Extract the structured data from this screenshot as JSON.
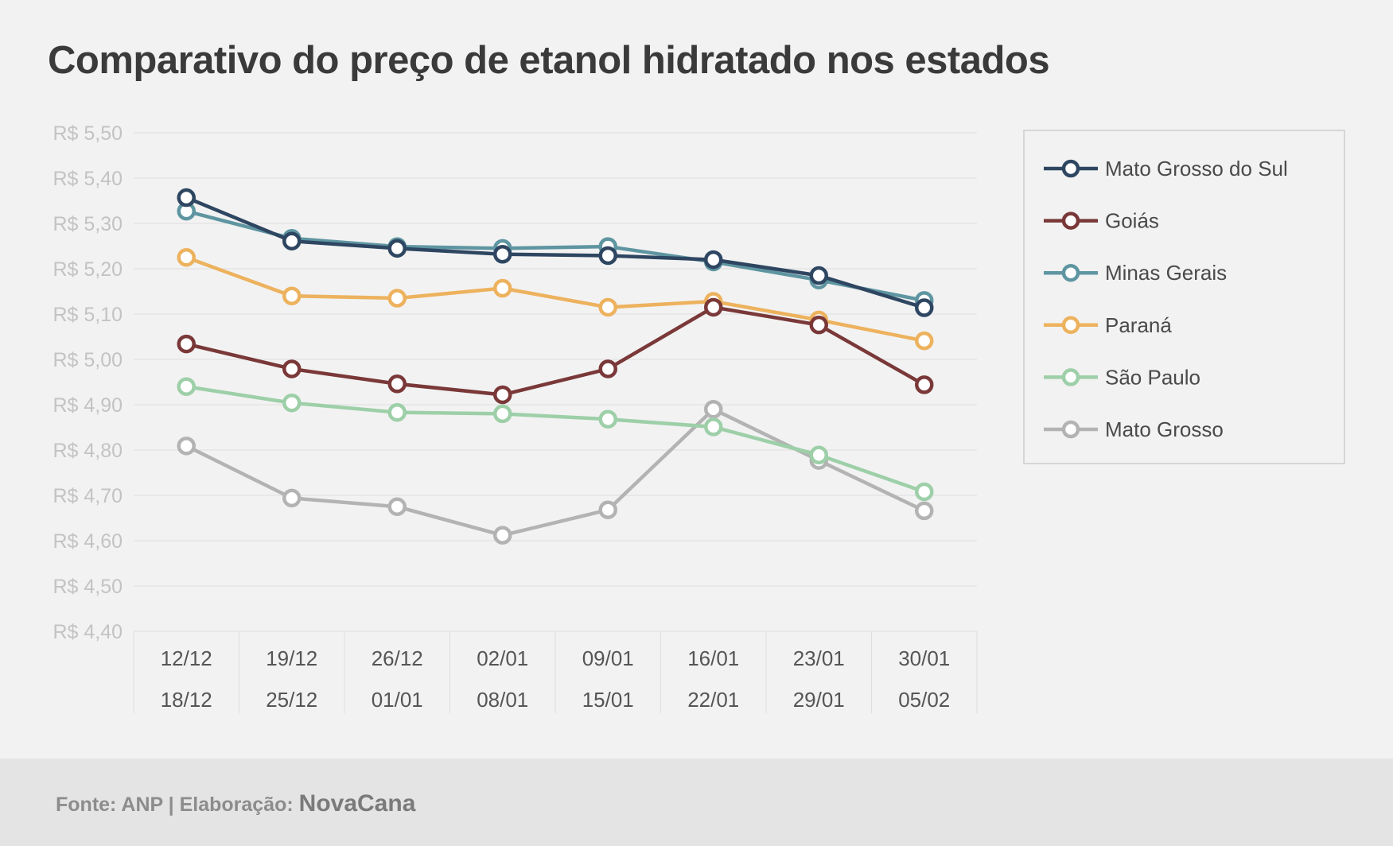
{
  "chart_data": {
    "type": "line",
    "title": "Comparativo do preço de etanol hidratado nos estados",
    "categories": [
      [
        "12/12",
        "18/12"
      ],
      [
        "19/12",
        "25/12"
      ],
      [
        "26/12",
        "01/01"
      ],
      [
        "02/01",
        "08/01"
      ],
      [
        "09/01",
        "15/01"
      ],
      [
        "16/01",
        "22/01"
      ],
      [
        "23/01",
        "29/01"
      ],
      [
        "30/01",
        "05/02"
      ]
    ],
    "yticks": [
      "R$ 5,50",
      "R$ 5,40",
      "R$ 5,30",
      "R$ 5,20",
      "R$ 5,10",
      "R$ 5,00",
      "R$ 4,90",
      "R$ 4,80",
      "R$ 4,70",
      "R$ 4,60",
      "R$ 4,50",
      "R$ 4,40"
    ],
    "ylim": [
      4.4,
      5.5
    ],
    "grid": true,
    "legend_position": "right",
    "series": [
      {
        "name": "Mato Grosso do Sul",
        "color": "#2e4661",
        "values": [
          5.357,
          5.261,
          5.245,
          5.232,
          5.229,
          5.22,
          5.185,
          5.114
        ]
      },
      {
        "name": "Goiás",
        "color": "#7a3838",
        "values": [
          5.034,
          4.979,
          4.946,
          4.922,
          4.979,
          5.115,
          5.076,
          4.944
        ]
      },
      {
        "name": "Minas Gerais",
        "color": "#5e95a1",
        "values": [
          5.327,
          5.267,
          5.249,
          5.245,
          5.249,
          5.215,
          5.175,
          5.13
        ]
      },
      {
        "name": "Paraná",
        "color": "#edb25e",
        "values": [
          5.225,
          5.14,
          5.135,
          5.157,
          5.115,
          5.128,
          5.087,
          5.041
        ]
      },
      {
        "name": "São Paulo",
        "color": "#9dcfa8",
        "values": [
          4.94,
          4.904,
          4.883,
          4.88,
          4.868,
          4.851,
          4.789,
          4.708
        ]
      },
      {
        "name": "Mato Grosso",
        "color": "#b3b3b3",
        "values": [
          4.809,
          4.694,
          4.675,
          4.612,
          4.668,
          4.89,
          4.777,
          4.666
        ]
      }
    ]
  },
  "footer": {
    "source": "Fonte: ANP | Elaboração: ",
    "brand": "NovaCana"
  }
}
